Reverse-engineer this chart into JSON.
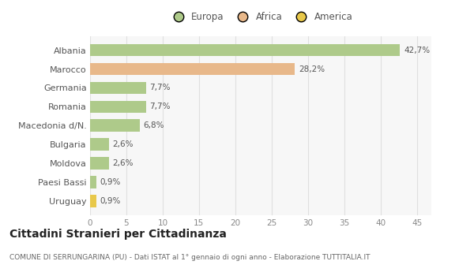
{
  "categories": [
    "Albania",
    "Marocco",
    "Germania",
    "Romania",
    "Macedonia d/N.",
    "Bulgaria",
    "Moldova",
    "Paesi Bassi",
    "Uruguay"
  ],
  "values": [
    42.7,
    28.2,
    7.7,
    7.7,
    6.8,
    2.6,
    2.6,
    0.9,
    0.9
  ],
  "labels": [
    "42,7%",
    "28,2%",
    "7,7%",
    "7,7%",
    "6,8%",
    "2,6%",
    "2,6%",
    "0,9%",
    "0,9%"
  ],
  "colors": [
    "#aeca8a",
    "#e8b88a",
    "#aeca8a",
    "#aeca8a",
    "#aeca8a",
    "#aeca8a",
    "#aeca8a",
    "#aeca8a",
    "#e8c84a"
  ],
  "legend_labels": [
    "Europa",
    "Africa",
    "America"
  ],
  "legend_colors": [
    "#aeca8a",
    "#e8b88a",
    "#e8c84a"
  ],
  "title": "Cittadini Stranieri per Cittadinanza",
  "subtitle": "COMUNE DI SERRUNGARINA (PU) - Dati ISTAT al 1° gennaio di ogni anno - Elaborazione TUTTITALIA.IT",
  "xlim": [
    0,
    47
  ],
  "xticks": [
    0,
    5,
    10,
    15,
    20,
    25,
    30,
    35,
    40,
    45
  ],
  "bg_color": "#ffffff",
  "plot_bg_color": "#f7f7f7",
  "grid_color": "#e0e0e0"
}
